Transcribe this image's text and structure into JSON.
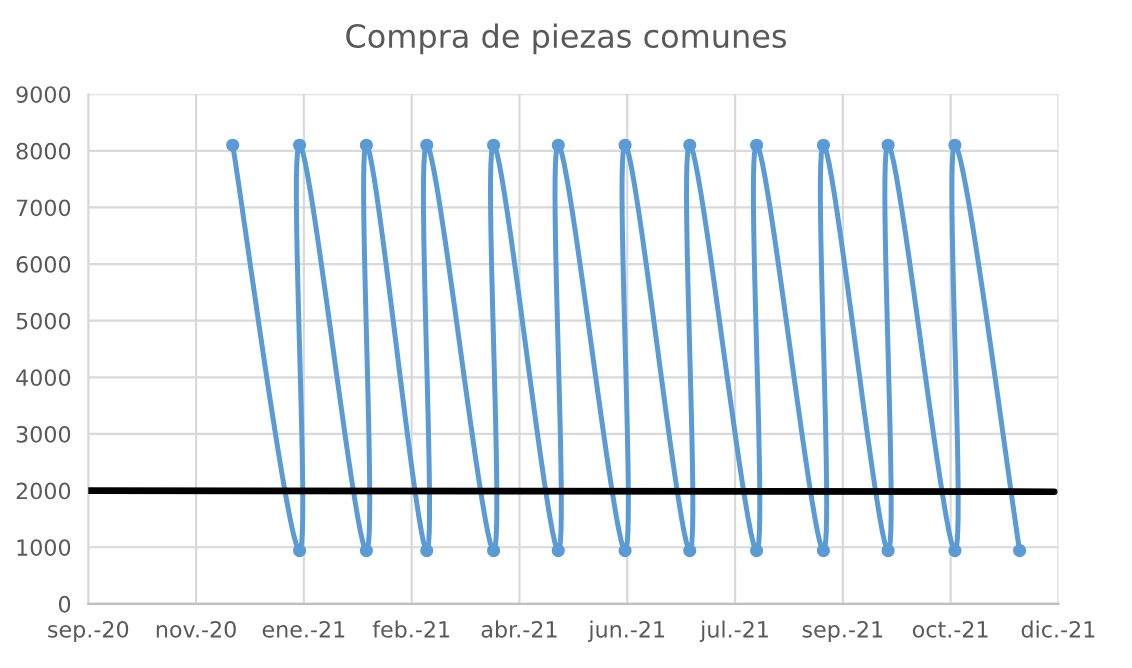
{
  "chart_data": {
    "type": "line",
    "title": "Compra de piezas comunes",
    "series": [
      {
        "color": "#5b9bd5",
        "marker": "circle",
        "x": [
          "2020-12-01",
          "2021-01-01",
          "2021-01-01",
          "2021-02-01",
          "2021-02-01",
          "2021-03-01",
          "2021-03-01",
          "2021-04-01",
          "2021-04-01",
          "2021-05-01",
          "2021-05-01",
          "2021-06-01",
          "2021-06-01",
          "2021-07-01",
          "2021-07-01",
          "2021-08-01",
          "2021-08-01",
          "2021-09-01",
          "2021-09-01",
          "2021-10-01",
          "2021-10-01",
          "2021-11-01",
          "2021-11-01",
          "2021-12-01"
        ],
        "values": [
          8100,
          940,
          8100,
          940,
          8100,
          940,
          8100,
          940,
          8100,
          940,
          8100,
          940,
          8100,
          940,
          8100,
          940,
          8100,
          940,
          8100,
          940,
          8100,
          940,
          8100,
          940
        ]
      },
      {
        "color": "#000000",
        "marker": "none",
        "x": [
          "2020-09-25",
          "2021-12-17"
        ],
        "values": [
          2000,
          1980
        ]
      }
    ],
    "xlim": [
      "2020-09-25",
      "2021-12-19"
    ],
    "xticks": [
      {
        "value": "2020-09-25",
        "label": "sep.-20"
      },
      {
        "value": "2020-11-14",
        "label": "nov.-20"
      },
      {
        "value": "2021-01-03",
        "label": "ene.-21"
      },
      {
        "value": "2021-02-22",
        "label": "feb.-21"
      },
      {
        "value": "2021-04-13",
        "label": "abr.-21"
      },
      {
        "value": "2021-06-02",
        "label": "jun.-21"
      },
      {
        "value": "2021-07-22",
        "label": "jul.-21"
      },
      {
        "value": "2021-09-10",
        "label": "sep.-21"
      },
      {
        "value": "2021-10-30",
        "label": "oct.-21"
      },
      {
        "value": "2021-12-19",
        "label": "dic.-21"
      }
    ],
    "ylim": [
      0,
      9000
    ],
    "yticks": [
      0,
      1000,
      2000,
      3000,
      4000,
      5000,
      6000,
      7000,
      8000,
      9000
    ],
    "grid": true,
    "line_style": "solid"
  }
}
